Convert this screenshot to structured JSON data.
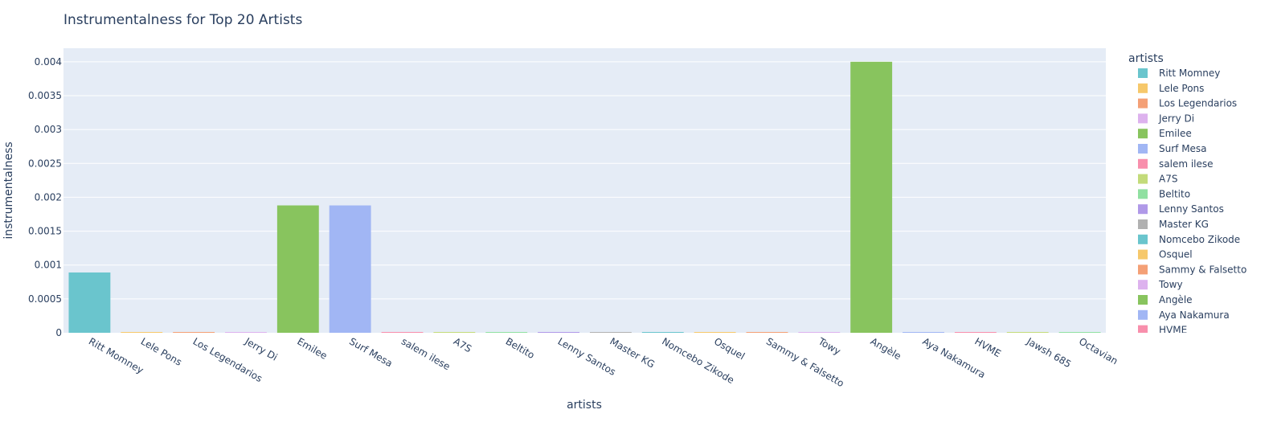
{
  "chart_data": {
    "type": "bar",
    "title": "Instrumentalness for Top 20 Artists",
    "xlabel": "artists",
    "ylabel": "instrumentalness",
    "ylim": [
      0,
      0.0042
    ],
    "yticks": [
      0,
      0.0005,
      0.001,
      0.0015,
      0.002,
      0.0025,
      0.003,
      0.0035,
      0.004
    ],
    "ytick_labels": [
      "0",
      "0.0005",
      "0.001",
      "0.0015",
      "0.002",
      "0.0025",
      "0.003",
      "0.0035",
      "0.004"
    ],
    "grid": true,
    "legend_title": "artists",
    "legend_placement": "right",
    "categories": [
      "Ritt Momney",
      "Lele Pons",
      "Los Legendarios",
      "Jerry Di",
      "Emilee",
      "Surf Mesa",
      "salem ilese",
      "A7S",
      "Beltito",
      "Lenny Santos",
      "Master KG",
      "Nomcebo Zikode",
      "Osquel",
      "Sammy & Falsetto",
      "Towy",
      "Angèle",
      "Aya Nakamura",
      "HVME",
      "Jawsh 685",
      "Octavian"
    ],
    "values": [
      0.00089,
      2e-06,
      4e-06,
      5e-06,
      0.00188,
      0.00188,
      1.2e-05,
      1e-06,
      3e-06,
      2e-06,
      8e-06,
      1e-05,
      1e-06,
      2e-06,
      3e-06,
      0.004,
      2e-06,
      4e-06,
      2e-06,
      3e-06
    ],
    "colors": [
      "#6AC5CD",
      "#F6C86B",
      "#F4A076",
      "#DDB2EE",
      "#88C45E",
      "#A1B6F4",
      "#F88FAC",
      "#C3DB7A",
      "#90E0A1",
      "#B099E8",
      "#B1B1B1",
      "#6AC5CD",
      "#F6C86B",
      "#F4A076",
      "#DDB2EE",
      "#88C45E",
      "#A1B6F4",
      "#F88FAC",
      "#C3DB7A",
      "#90E0A1"
    ],
    "legend_visible": [
      "Ritt Momney",
      "Lele Pons",
      "Los Legendarios",
      "Jerry Di",
      "Emilee",
      "Surf Mesa",
      "salem ilese",
      "A7S",
      "Beltito",
      "Lenny Santos",
      "Master KG",
      "Nomcebo Zikode",
      "Osquel",
      "Sammy & Falsetto",
      "Towy",
      "Angèle",
      "Aya Nakamura",
      "HVME"
    ]
  },
  "colors": {
    "plot_bg": "#E5ECF6",
    "grid": "#ffffff",
    "text": "#2a3f5f"
  }
}
